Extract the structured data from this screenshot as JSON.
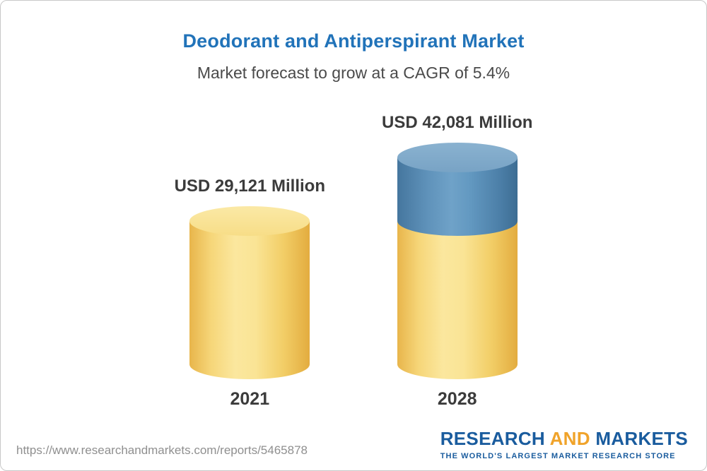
{
  "chart_data": {
    "type": "bar",
    "title": "Deodorant and Antiperspirant Market",
    "subtitle": "Market forecast to grow at a CAGR of 5.4%",
    "cagr": "5.4%",
    "unit": "USD Million",
    "categories": [
      "2021",
      "2028"
    ],
    "values": [
      29121,
      42081
    ],
    "value_labels": [
      "USD 29,121 Million",
      "USD 42,081 Million"
    ],
    "legend_position": "none",
    "grid": false,
    "colors": {
      "title_blue": "#2173b9",
      "bar_yellow": "#f6d679",
      "bar_blue_top": "#5f92ba",
      "label_text": "#3b3b3b"
    }
  },
  "footer": {
    "url": "https://www.researchandmarkets.com/reports/5465878",
    "logo": {
      "part1": "RESEARCH",
      "part2": "AND",
      "part3": "MARKETS",
      "tagline": "THE WORLD'S LARGEST MARKET RESEARCH STORE"
    }
  }
}
